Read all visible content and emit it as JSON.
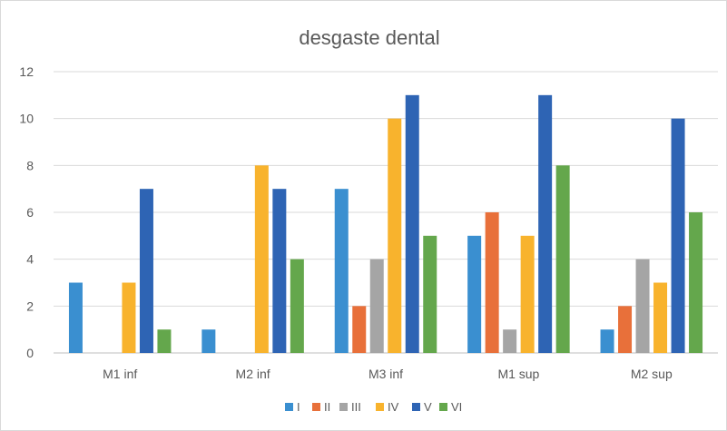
{
  "chart_data": {
    "type": "bar",
    "title": "desgaste dental",
    "xlabel": "",
    "ylabel": "",
    "categories": [
      "M1 inf",
      "M2 inf",
      "M3 inf",
      "M1 sup",
      "M2 sup"
    ],
    "ylim": [
      0,
      12
    ],
    "yticks": [
      0,
      2,
      4,
      6,
      8,
      10,
      12
    ],
    "grid": true,
    "legend_position": "bottom",
    "series": [
      {
        "name": "I",
        "color": "#3A8FD0",
        "values": [
          3,
          1,
          7,
          5,
          1
        ]
      },
      {
        "name": "II",
        "color": "#E8703A",
        "values": [
          0,
          0,
          2,
          6,
          2
        ]
      },
      {
        "name": "III",
        "color": "#A5A5A5",
        "values": [
          0,
          0,
          4,
          1,
          4
        ]
      },
      {
        "name": "IV",
        "color": "#F8B32D",
        "values": [
          3,
          8,
          10,
          5,
          3
        ]
      },
      {
        "name": "V",
        "color": "#2E64B4",
        "values": [
          7,
          7,
          11,
          11,
          10
        ]
      },
      {
        "name": "VI",
        "color": "#64A74C",
        "values": [
          1,
          4,
          5,
          8,
          6
        ]
      }
    ]
  }
}
